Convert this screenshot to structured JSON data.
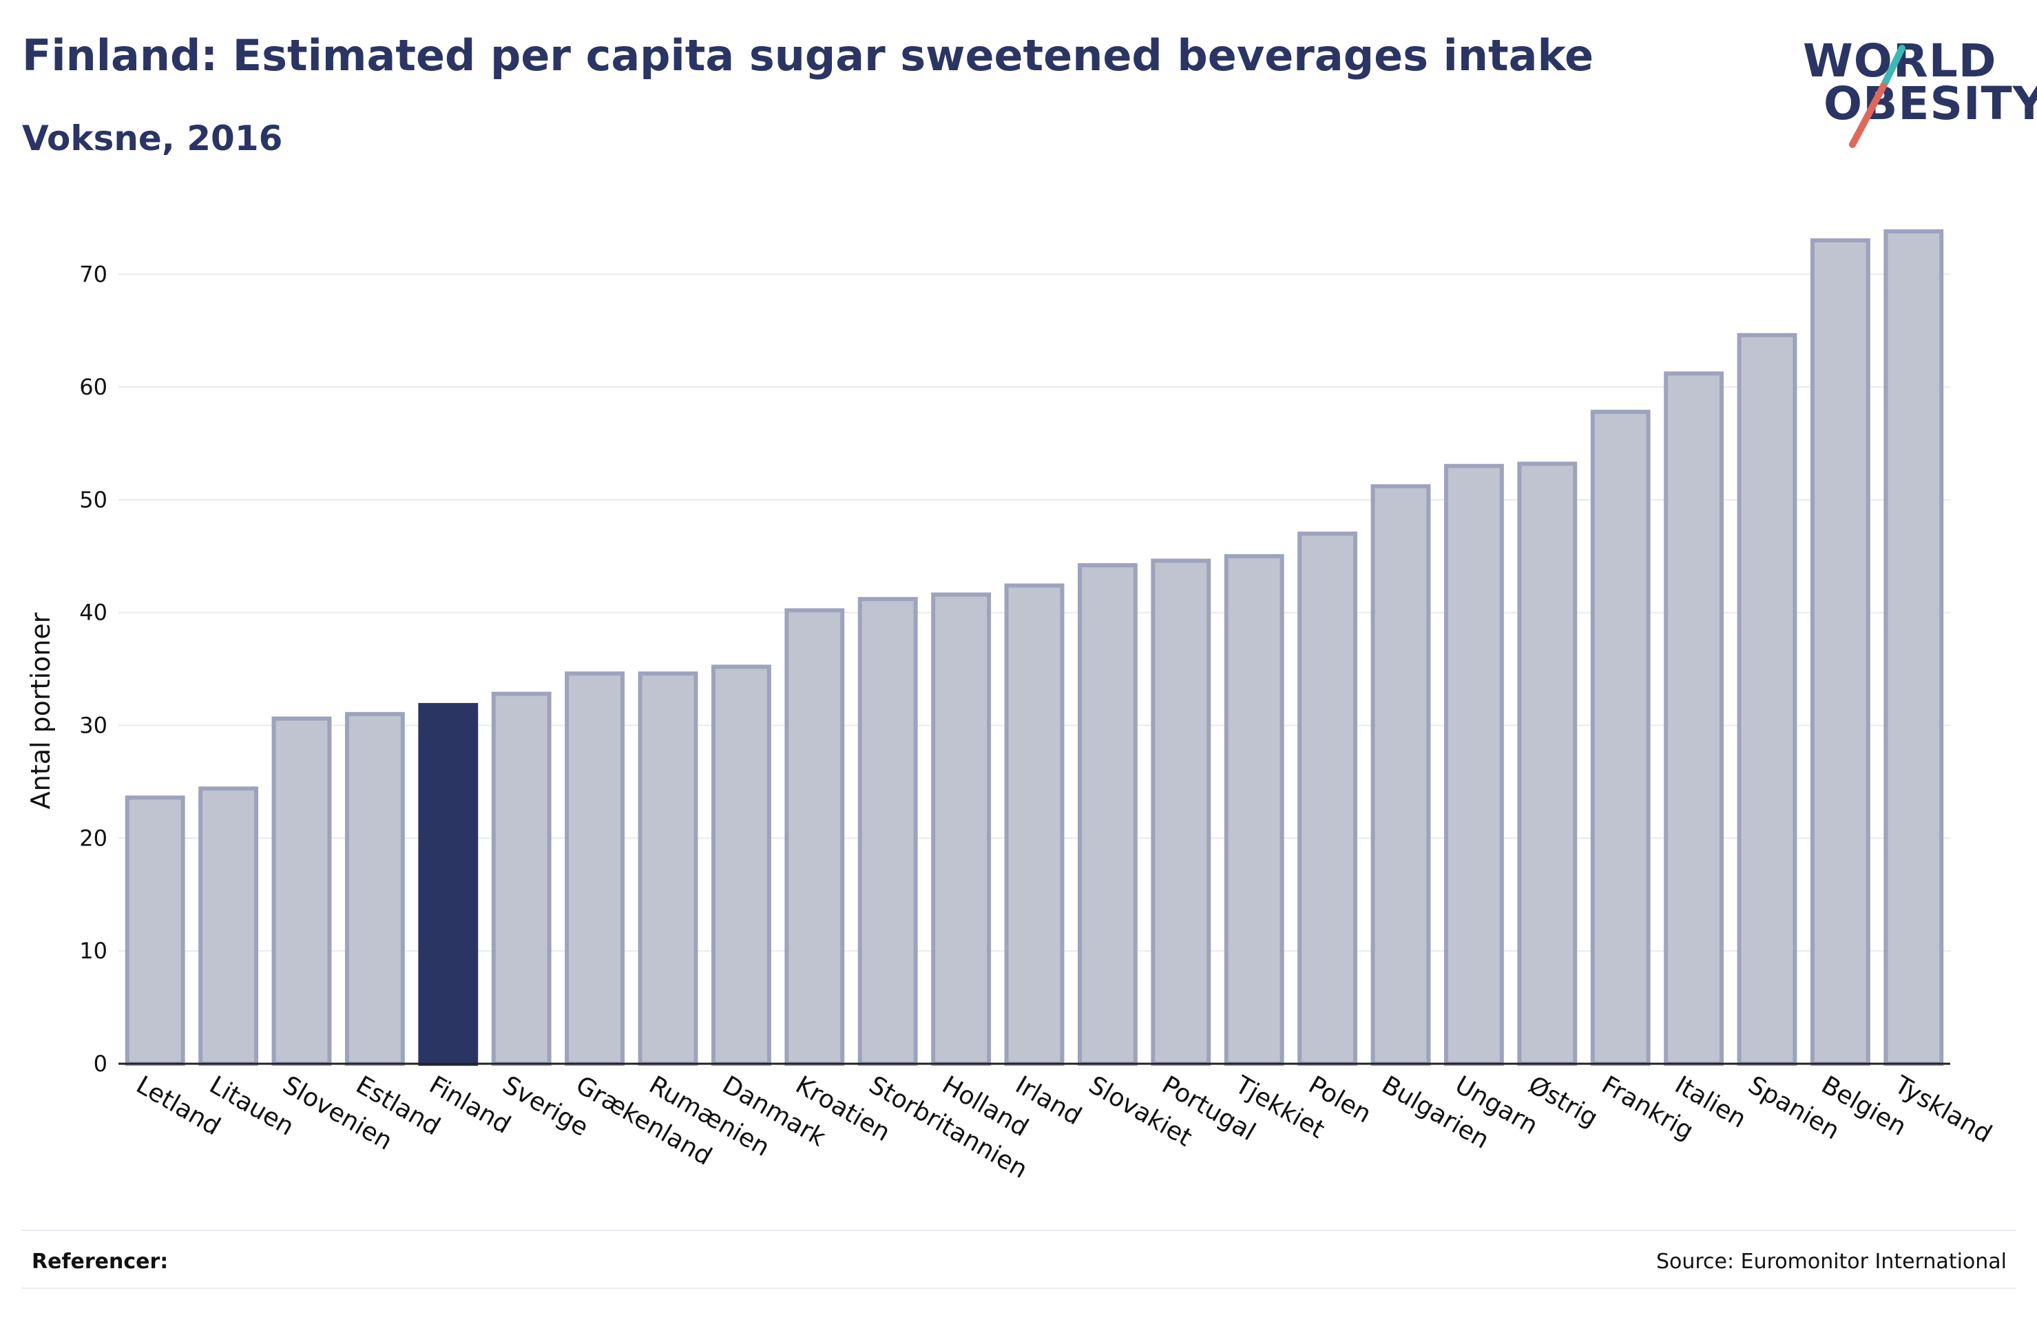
{
  "header": {
    "title": "Finland: Estimated per capita sugar sweetened beverages intake",
    "subtitle": "Voksne, 2016"
  },
  "logo": {
    "line1": "WORLD",
    "line2": "OBESITY"
  },
  "footer": {
    "references_label": "Referencer:",
    "source": "Source: Euromonitor International"
  },
  "colors": {
    "bar": "#c0c3d0",
    "bar_border": "#9ea3bc",
    "highlight": "#2b3563",
    "grid": "#e8eaef",
    "text": "#111111"
  },
  "chart_data": {
    "type": "bar",
    "title": "Finland: Estimated per capita sugar sweetened beverages intake",
    "subtitle": "Voksne, 2016",
    "xlabel": "",
    "ylabel": "Antal portioner",
    "ylim": [
      0,
      76
    ],
    "yticks": [
      0,
      10,
      20,
      30,
      40,
      50,
      60,
      70
    ],
    "grid": true,
    "highlight": "Finland",
    "categories": [
      "Letland",
      "Litauen",
      "Slovenien",
      "Estland",
      "Finland",
      "Sverige",
      "Grækenland",
      "Rumænien",
      "Danmark",
      "Kroatien",
      "Storbritannien",
      "Holland",
      "Irland",
      "Slovakiet",
      "Portugal",
      "Tjekkiet",
      "Polen",
      "Bulgarien",
      "Ungarn",
      "Østrig",
      "Frankrig",
      "Italien",
      "Spanien",
      "Belgien",
      "Tyskland"
    ],
    "values": [
      23.6,
      24.4,
      30.6,
      31.0,
      31.8,
      32.8,
      34.6,
      34.6,
      35.2,
      40.2,
      41.2,
      41.6,
      42.4,
      44.2,
      44.6,
      45.0,
      47.0,
      51.2,
      53.0,
      53.2,
      57.8,
      61.2,
      64.6,
      73.0,
      73.8
    ]
  }
}
